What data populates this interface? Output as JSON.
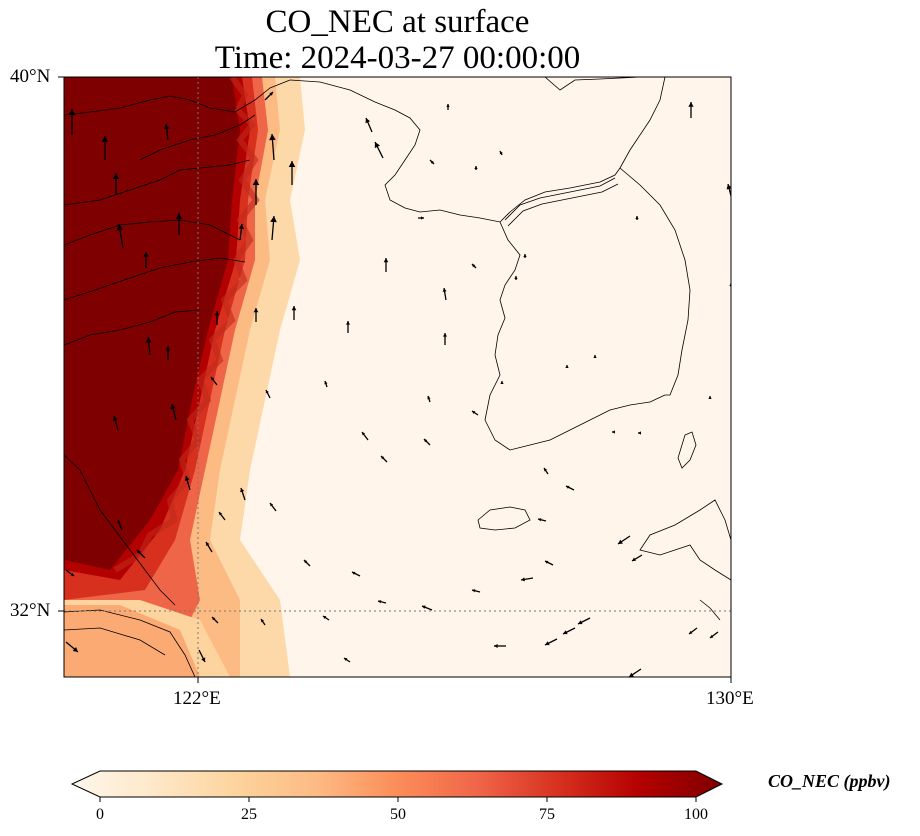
{
  "title": {
    "line1": "CO_NEC at surface",
    "line2": "Time: 2024-03-27 00:00:00"
  },
  "axes": {
    "lat_labels": [
      "40°N",
      "32°N"
    ],
    "lon_labels": [
      "122°E",
      "130°E"
    ]
  },
  "colorbar": {
    "label": "CO_NEC (ppbv)",
    "ticks": [
      "0",
      "25",
      "50",
      "75",
      "100"
    ],
    "range": [
      0,
      100
    ],
    "colormap": [
      "#fff7ec",
      "#fee8c8",
      "#fdd49e",
      "#fdbb84",
      "#fc8d59",
      "#ef6548",
      "#d7301f",
      "#b30000",
      "#7f0000"
    ]
  },
  "map": {
    "extent": {
      "lon": [
        118,
        130
      ],
      "lat": [
        31,
        40
      ]
    },
    "gridlines": {
      "lon": [
        122
      ],
      "lat": [
        32
      ]
    },
    "high_value_region": "western side (China coast) above 100 ppbv, decreasing eastward over the Yellow Sea",
    "features": [
      "coastlines",
      "wind vectors"
    ]
  }
}
